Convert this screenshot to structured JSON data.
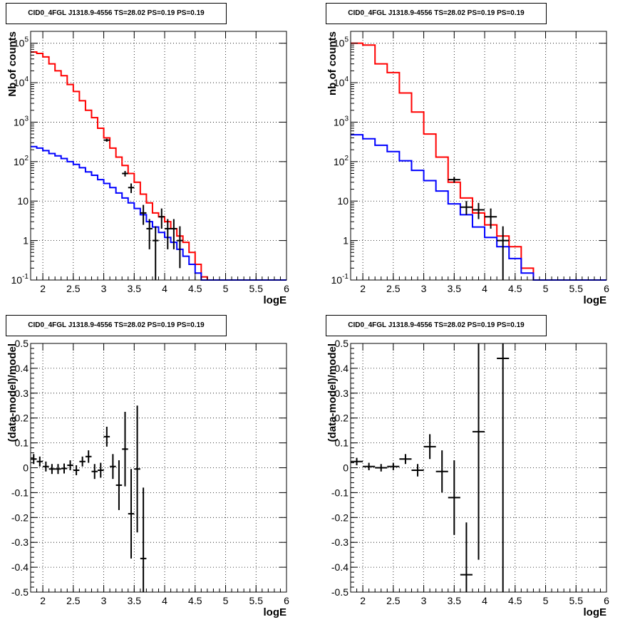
{
  "chart_data": [
    {
      "type": "histogram",
      "title": "CID0_4FGL J1318.9-4556 TS=28.02 PS=0.19 PS=0.19",
      "xlabel": "logE",
      "ylabel": "Nb of counts",
      "xlim": [
        1.8,
        6.0
      ],
      "ylim": [
        0.1,
        200000
      ],
      "yscale": "log",
      "grid": true,
      "x_ticks": [
        "2",
        "2.5",
        "3",
        "3.5",
        "4",
        "4.5",
        "5",
        "5.5",
        "6"
      ],
      "y_ticks": [
        "10^-1",
        "1",
        "10",
        "10^2",
        "10^3",
        "10^4",
        "10^5"
      ],
      "bin_width": 0.1,
      "series": [
        {
          "color": "#ff0000",
          "bin_low": [
            1.8,
            1.9,
            2.0,
            2.1,
            2.2,
            2.3,
            2.4,
            2.5,
            2.6,
            2.7,
            2.8,
            2.9,
            3.0,
            3.1,
            3.2,
            3.3,
            3.4,
            3.5,
            3.6,
            3.7,
            3.8,
            3.9,
            4.0,
            4.1,
            4.2,
            4.3,
            4.4,
            4.5,
            4.6,
            4.7,
            4.8,
            4.9,
            5.0,
            5.1,
            5.2,
            5.3,
            5.4,
            5.5,
            5.6,
            5.7,
            5.8,
            5.9
          ],
          "values": [
            60000,
            55000,
            45000,
            30000,
            20000,
            15000,
            9000,
            6000,
            3500,
            2000,
            1300,
            700,
            400,
            220,
            130,
            80,
            50,
            30,
            15,
            9,
            5,
            4,
            3,
            2,
            1.3,
            0.9,
            0.5,
            0.25,
            0.12,
            0.1,
            0.1,
            0.1,
            0.1,
            0.1,
            0.1,
            0.1,
            0.1,
            0.1,
            0.1,
            0.1,
            0.1,
            0.1
          ]
        },
        {
          "color": "#0000ff",
          "bin_low": [
            1.8,
            1.9,
            2.0,
            2.1,
            2.2,
            2.3,
            2.4,
            2.5,
            2.6,
            2.7,
            2.8,
            2.9,
            3.0,
            3.1,
            3.2,
            3.3,
            3.4,
            3.5,
            3.6,
            3.7,
            3.8,
            3.9,
            4.0,
            4.1,
            4.2,
            4.3,
            4.4,
            4.5,
            4.6,
            4.7,
            4.8,
            4.9,
            5.0,
            5.1,
            5.2,
            5.3,
            5.4,
            5.5,
            5.6,
            5.7,
            5.8,
            5.9
          ],
          "values": [
            240,
            220,
            190,
            160,
            140,
            120,
            100,
            85,
            70,
            55,
            45,
            35,
            28,
            22,
            16,
            12,
            9,
            6.5,
            4.5,
            3,
            2.2,
            1.6,
            1.2,
            0.9,
            0.6,
            0.4,
            0.25,
            0.15,
            0.1,
            0.1,
            0.1,
            0.1,
            0.1,
            0.1,
            0.1,
            0.1,
            0.1,
            0.1,
            0.1,
            0.1,
            0.1,
            0.1
          ]
        }
      ],
      "data_points": [
        {
          "x": 3.05,
          "y": 350,
          "ylo": 320,
          "yhi": 380
        },
        {
          "x": 3.35,
          "y": 50,
          "ylo": 42,
          "yhi": 58
        },
        {
          "x": 3.45,
          "y": 22,
          "ylo": 16,
          "yhi": 28
        },
        {
          "x": 3.65,
          "y": 5,
          "ylo": 2.5,
          "yhi": 8
        },
        {
          "x": 3.75,
          "y": 2,
          "ylo": 0.6,
          "yhi": 3.5
        },
        {
          "x": 3.85,
          "y": 1,
          "ylo": 0.1,
          "yhi": 2.3
        },
        {
          "x": 3.95,
          "y": 4,
          "ylo": 2,
          "yhi": 6.5
        },
        {
          "x": 4.05,
          "y": 2,
          "ylo": 0.6,
          "yhi": 3.5
        },
        {
          "x": 4.15,
          "y": 2,
          "ylo": 0.6,
          "yhi": 3.5
        },
        {
          "x": 4.25,
          "y": 1,
          "ylo": 0.2,
          "yhi": 2.3
        }
      ]
    },
    {
      "type": "histogram",
      "title": "CID0_4FGL J1318.9-4556 TS=28.02 PS=0.19 PS=0.19",
      "xlabel": "logE",
      "ylabel": "nb of counts",
      "xlim": [
        1.8,
        6.0
      ],
      "ylim": [
        0.1,
        200000
      ],
      "yscale": "log",
      "grid": true,
      "x_ticks": [
        "2",
        "2.5",
        "3",
        "3.5",
        "4",
        "4.5",
        "5",
        "5.5",
        "6"
      ],
      "y_ticks": [
        "10^-1",
        "1",
        "10",
        "10^2",
        "10^3",
        "10^4",
        "10^5"
      ],
      "bin_width": 0.2,
      "series": [
        {
          "color": "#ff0000",
          "bin_low": [
            1.8,
            2.0,
            2.2,
            2.4,
            2.6,
            2.8,
            3.0,
            3.2,
            3.4,
            3.6,
            3.8,
            4.0,
            4.2,
            4.4,
            4.6,
            4.8,
            5.0,
            5.2,
            5.4,
            5.6,
            5.8
          ],
          "values": [
            100000,
            90000,
            30000,
            18000,
            5500,
            1800,
            500,
            130,
            30,
            12,
            5,
            2.5,
            1.3,
            0.7,
            0.2,
            0.1,
            0.1,
            0.1,
            0.1,
            0.1,
            0.1
          ]
        },
        {
          "color": "#0000ff",
          "bin_low": [
            1.8,
            2.0,
            2.2,
            2.4,
            2.6,
            2.8,
            3.0,
            3.2,
            3.4,
            3.6,
            3.8,
            4.0,
            4.2,
            4.4,
            4.6,
            4.8,
            5.0,
            5.2,
            5.4,
            5.6,
            5.8
          ],
          "values": [
            480,
            380,
            260,
            180,
            105,
            60,
            33,
            18,
            8.5,
            4.5,
            2.2,
            1.2,
            0.7,
            0.35,
            0.15,
            0.1,
            0.1,
            0.1,
            0.1,
            0.1,
            0.1
          ]
        }
      ],
      "data_points": [
        {
          "x": 3.5,
          "y": 35,
          "ylo": 29,
          "yhi": 41
        },
        {
          "x": 3.7,
          "y": 7,
          "ylo": 4.5,
          "yhi": 10
        },
        {
          "x": 3.9,
          "y": 6,
          "ylo": 3.5,
          "yhi": 9
        },
        {
          "x": 4.1,
          "y": 4,
          "ylo": 2,
          "yhi": 6.5
        },
        {
          "x": 4.3,
          "y": 1,
          "ylo": 0.1,
          "yhi": 2.3
        }
      ]
    },
    {
      "type": "scatter",
      "title": "CID0_4FGL J1318.9-4556 TS=28.02 PS=0.19 PS=0.19",
      "xlabel": "logE",
      "ylabel": "(data-model)/model",
      "xlim": [
        1.8,
        6.0
      ],
      "ylim": [
        -0.5,
        0.5
      ],
      "grid": true,
      "x_ticks": [
        "2",
        "2.5",
        "3",
        "3.5",
        "4",
        "4.5",
        "5",
        "5.5",
        "6"
      ],
      "y_ticks": [
        "-0.5",
        "-0.4",
        "-0.3",
        "-0.2",
        "-0.1",
        "0",
        "0.1",
        "0.2",
        "0.3",
        "0.4",
        "0.5"
      ],
      "bin_width": 0.1,
      "data_points": [
        {
          "x": 1.85,
          "y": 0.035,
          "ylo": 0.015,
          "yhi": 0.055
        },
        {
          "x": 1.95,
          "y": 0.025,
          "ylo": 0.005,
          "yhi": 0.045
        },
        {
          "x": 2.05,
          "y": 0.005,
          "ylo": -0.015,
          "yhi": 0.025
        },
        {
          "x": 2.15,
          "y": -0.005,
          "ylo": -0.025,
          "yhi": 0.015
        },
        {
          "x": 2.25,
          "y": -0.005,
          "ylo": -0.025,
          "yhi": 0.015
        },
        {
          "x": 2.35,
          "y": -0.003,
          "ylo": -0.023,
          "yhi": 0.017
        },
        {
          "x": 2.45,
          "y": 0.01,
          "ylo": -0.01,
          "yhi": 0.03
        },
        {
          "x": 2.55,
          "y": -0.01,
          "ylo": -0.03,
          "yhi": 0.01
        },
        {
          "x": 2.65,
          "y": 0.025,
          "ylo": 0.005,
          "yhi": 0.045
        },
        {
          "x": 2.75,
          "y": 0.045,
          "ylo": 0.02,
          "yhi": 0.07
        },
        {
          "x": 2.85,
          "y": -0.015,
          "ylo": -0.045,
          "yhi": 0.015
        },
        {
          "x": 2.95,
          "y": -0.01,
          "ylo": -0.04,
          "yhi": 0.02
        },
        {
          "x": 3.05,
          "y": 0.125,
          "ylo": 0.085,
          "yhi": 0.165
        },
        {
          "x": 3.15,
          "y": 0.005,
          "ylo": -0.045,
          "yhi": 0.055
        },
        {
          "x": 3.25,
          "y": -0.07,
          "ylo": -0.17,
          "yhi": 0.03
        },
        {
          "x": 3.35,
          "y": 0.075,
          "ylo": -0.075,
          "yhi": 0.225
        },
        {
          "x": 3.45,
          "y": -0.185,
          "ylo": -0.365,
          "yhi": -0.005
        },
        {
          "x": 3.55,
          "y": -0.005,
          "ylo": -0.26,
          "yhi": 0.25
        },
        {
          "x": 3.65,
          "y": -0.365,
          "ylo": -0.5,
          "yhi": -0.08
        }
      ]
    },
    {
      "type": "scatter",
      "title": "CID0_4FGL J1318.9-4556 TS=28.02 PS=0.19 PS=0.19",
      "xlabel": "logE",
      "ylabel": "(data-model)/model",
      "xlim": [
        1.8,
        6.0
      ],
      "ylim": [
        -0.5,
        0.5
      ],
      "grid": true,
      "x_ticks": [
        "2",
        "2.5",
        "3",
        "3.5",
        "4",
        "4.5",
        "5",
        "5.5",
        "6"
      ],
      "y_ticks": [
        "-0.5",
        "-0.4",
        "-0.3",
        "-0.2",
        "-0.1",
        "0",
        "0.1",
        "0.2",
        "0.3",
        "0.4",
        "0.5"
      ],
      "bin_width": 0.2,
      "data_points": [
        {
          "x": 1.9,
          "y": 0.025,
          "ylo": 0.01,
          "yhi": 0.04
        },
        {
          "x": 2.1,
          "y": 0.005,
          "ylo": -0.01,
          "yhi": 0.02
        },
        {
          "x": 2.3,
          "y": 0.0,
          "ylo": -0.015,
          "yhi": 0.015
        },
        {
          "x": 2.5,
          "y": 0.005,
          "ylo": -0.01,
          "yhi": 0.02
        },
        {
          "x": 2.7,
          "y": 0.035,
          "ylo": 0.015,
          "yhi": 0.055
        },
        {
          "x": 2.9,
          "y": -0.01,
          "ylo": -0.035,
          "yhi": 0.015
        },
        {
          "x": 3.1,
          "y": 0.085,
          "ylo": 0.035,
          "yhi": 0.135
        },
        {
          "x": 3.3,
          "y": -0.015,
          "ylo": -0.1,
          "yhi": 0.07
        },
        {
          "x": 3.5,
          "y": -0.12,
          "ylo": -0.27,
          "yhi": 0.03
        },
        {
          "x": 3.7,
          "y": -0.43,
          "ylo": -0.5,
          "yhi": -0.22
        },
        {
          "x": 3.9,
          "y": 0.145,
          "ylo": -0.37,
          "yhi": 0.5
        },
        {
          "x": 4.3,
          "y": 0.44,
          "ylo": -0.5,
          "yhi": 0.5
        }
      ]
    }
  ]
}
